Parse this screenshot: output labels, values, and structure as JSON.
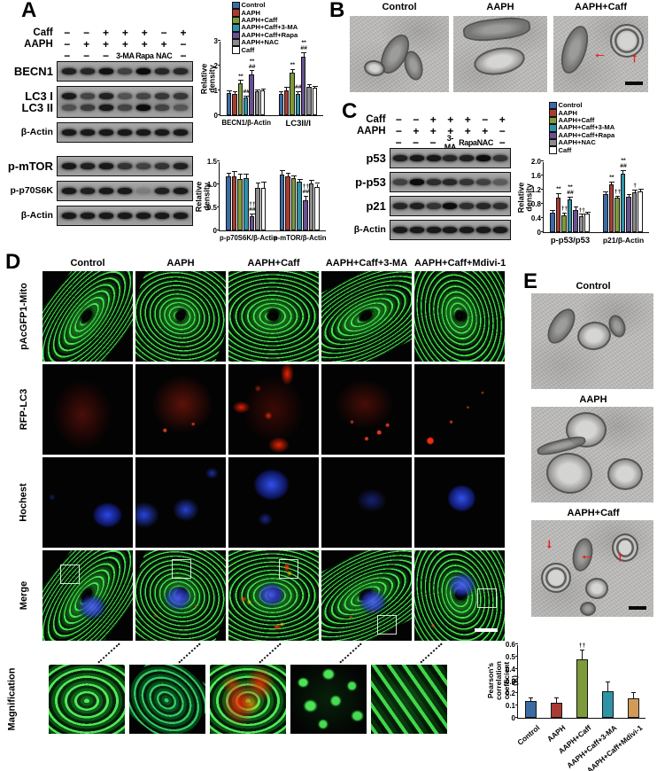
{
  "icons": {
    "red_arrow_left": "←",
    "red_arrow_up": "↑",
    "red_arrow_down": "↓"
  },
  "panelA": {
    "label": "A",
    "blot1": {
      "header": [
        {
          "label": "Caff",
          "symbols": [
            "−",
            "−",
            "+",
            "+",
            "+",
            "−",
            "+"
          ]
        },
        {
          "label": "AAPH",
          "symbols": [
            "−",
            "+",
            "+",
            "+",
            "+",
            "+",
            "−"
          ]
        },
        {
          "label": "",
          "symbols": [
            "−",
            "−",
            "−",
            "3-MA",
            "Rapa",
            "NAC",
            "−"
          ]
        }
      ],
      "groups": [
        {
          "labels": [
            "BECN1"
          ],
          "bands": [
            [
              0.85,
              0.8,
              0.95,
              0.6,
              1,
              0.8,
              0.8
            ]
          ]
        },
        {
          "labels": [
            "LC3 I",
            "LC3 II"
          ],
          "bands": [
            [
              0.9,
              0.6,
              0.85,
              0.5,
              0.6,
              0.7,
              0.7
            ],
            [
              0.5,
              0.65,
              0.9,
              0.6,
              1,
              0.6,
              0.45
            ]
          ]
        },
        {
          "labels": [
            "β-Actin"
          ],
          "bands": [
            [
              0.9,
              0.9,
              0.9,
              0.9,
              0.9,
              0.9,
              0.9
            ]
          ]
        }
      ]
    },
    "blot2": {
      "header": [],
      "groups": [
        {
          "labels": [
            "p-mTOR"
          ],
          "bands": [
            [
              0.9,
              0.85,
              0.9,
              0.7,
              0.6,
              0.7,
              0.85
            ]
          ]
        },
        {
          "labels": [
            "p-p70S6K"
          ],
          "bands": [
            [
              0.9,
              0.85,
              0.9,
              0.9,
              0.15,
              0.85,
              0.9
            ]
          ]
        },
        {
          "labels": [
            "β-Actin"
          ],
          "bands": [
            [
              0.9,
              0.9,
              0.9,
              0.9,
              0.9,
              0.9,
              0.9
            ]
          ]
        }
      ]
    }
  },
  "panelB": {
    "label": "B",
    "titles": [
      "Control",
      "AAPH",
      "AAPH+Caff"
    ]
  },
  "panelC": {
    "label": "C",
    "blot": {
      "header": [
        {
          "label": "Caff",
          "symbols": [
            "−",
            "−",
            "+",
            "+",
            "+",
            "−",
            "+"
          ]
        },
        {
          "label": "AAPH",
          "symbols": [
            "−",
            "+",
            "+",
            "+",
            "+",
            "+",
            "−"
          ]
        },
        {
          "label": "",
          "symbols": [
            "−",
            "−",
            "−",
            "3-MA",
            "Rapa",
            "NAC",
            "−"
          ]
        }
      ],
      "groups": [
        {
          "labels": [
            "p53"
          ],
          "bands": [
            [
              0.85,
              0.9,
              0.9,
              0.8,
              0.85,
              1,
              0.7
            ]
          ]
        },
        {
          "labels": [
            "p-p53"
          ],
          "bands": [
            [
              0.6,
              1,
              0.75,
              0.8,
              0.7,
              0.6,
              0.4
            ]
          ]
        },
        {
          "labels": [
            "p21"
          ],
          "bands": [
            [
              0.8,
              0.85,
              0.7,
              1,
              0.75,
              0.8,
              0.75
            ]
          ]
        },
        {
          "labels": [
            "β-Actin"
          ],
          "bands": [
            [
              0.9,
              0.9,
              0.9,
              0.9,
              0.9,
              0.9,
              0.9
            ]
          ]
        }
      ]
    }
  },
  "panelD": {
    "label": "D",
    "columns": [
      "Control",
      "AAPH",
      "AAPH+Caff",
      "AAPH+Caff+3-MA",
      "AAPH+Caff+Mdivi-1"
    ],
    "rows": [
      "pAcGFP1-Mito",
      "RFP-LC3",
      "Hochest",
      "Merge"
    ],
    "magnification_label": "Magnification"
  },
  "panelE": {
    "label": "E",
    "titles": [
      "Control",
      "AAPH",
      "AAPH+Caff"
    ]
  },
  "chart_data": [
    {
      "id": "becn1-lc3-density",
      "type": "bar",
      "ylabel": "Relative density",
      "ylim": [
        0,
        3
      ],
      "yticks": [
        "0",
        "1",
        "2",
        "3"
      ],
      "categories": [
        "BECN1/β-Actin",
        "LC3II/I"
      ],
      "legend_position": "top",
      "series": [
        {
          "name": "Control",
          "color": "#3b6ba5",
          "values": [
            0.9,
            0.85
          ],
          "errors": [
            0.07,
            0.07
          ]
        },
        {
          "name": "AAPH",
          "color": "#a93c32",
          "values": [
            0.85,
            1.0
          ],
          "errors": [
            0.08,
            0.1
          ]
        },
        {
          "name": "AAPH+Caff",
          "color": "#7d9b3a",
          "values": [
            1.3,
            1.7
          ],
          "errors": [
            0.08,
            0.12
          ]
        },
        {
          "name": "AAPH+Caff+3-MA",
          "color": "#2f93a8",
          "values": [
            0.7,
            0.85
          ],
          "errors": [
            0.05,
            0.07
          ]
        },
        {
          "name": "AAPH+Caff+Rapa",
          "color": "#6a4f92",
          "values": [
            1.65,
            2.35
          ],
          "errors": [
            0.12,
            0.15
          ]
        },
        {
          "name": "AAPH+NAC",
          "color": "#8b8b8d",
          "values": [
            0.95,
            1.15
          ],
          "errors": [
            0.06,
            0.05
          ]
        },
        {
          "name": "Caff",
          "color": "#ffffff",
          "values": [
            1.0,
            1.1
          ],
          "errors": [
            0.05,
            0.05
          ]
        }
      ],
      "annotations": [
        {
          "cat": 0,
          "series": 2,
          "text": "**"
        },
        {
          "cat": 0,
          "series": 3,
          "text": "##"
        },
        {
          "cat": 0,
          "series": 4,
          "text": "**\n##"
        },
        {
          "cat": 1,
          "series": 2,
          "text": "**"
        },
        {
          "cat": 1,
          "series": 3,
          "text": "##"
        },
        {
          "cat": 1,
          "series": 4,
          "text": "**\n##"
        }
      ]
    },
    {
      "id": "p70s6k-mtor-density",
      "type": "bar",
      "ylabel": "Relative density",
      "ylim": [
        0,
        1.5
      ],
      "yticks": [
        "0",
        "0.5",
        "1.0",
        "1.5"
      ],
      "categories": [
        "p-p70S6K/β-Actin",
        "p-mTOR/β-Actin"
      ],
      "series": [
        {
          "name": "Control",
          "color": "#3b6ba5",
          "values": [
            1.18,
            1.22
          ],
          "errors": [
            0.05,
            0.07
          ]
        },
        {
          "name": "AAPH",
          "color": "#a93c32",
          "values": [
            1.18,
            1.18
          ],
          "errors": [
            0.08,
            0.06
          ]
        },
        {
          "name": "AAPH+Caff",
          "color": "#7d9b3a",
          "values": [
            1.12,
            1.13
          ],
          "errors": [
            0.1,
            0.05
          ]
        },
        {
          "name": "AAPH+Caff+3-MA",
          "color": "#2f93a8",
          "values": [
            1.13,
            1.05
          ],
          "errors": [
            0.08,
            0.04
          ]
        },
        {
          "name": "AAPH+Caff+Rapa",
          "color": "#6a4f92",
          "values": [
            0.3,
            0.65
          ],
          "errors": [
            0.05,
            0.08
          ]
        },
        {
          "name": "AAPH+NAC",
          "color": "#8b8b8d",
          "values": [
            0.92,
            1.02
          ],
          "errors": [
            0.1,
            0.06
          ]
        },
        {
          "name": "Caff",
          "color": "#ffffff",
          "values": [
            0.93,
            0.95
          ],
          "errors": [
            0.1,
            0.06
          ]
        }
      ],
      "annotations": [
        {
          "cat": 0,
          "series": 4,
          "text": "††\n##"
        },
        {
          "cat": 1,
          "series": 4,
          "text": "††\n##"
        }
      ]
    },
    {
      "id": "p53-p21-density",
      "type": "bar",
      "ylabel": "Relative density",
      "ylim": [
        0,
        2
      ],
      "yticks": [
        "0",
        "0.4",
        "0.8",
        "1.2",
        "1.6",
        "2.0"
      ],
      "categories": [
        "p-p53/p53",
        "p21/β-Actin"
      ],
      "legend_position": "top",
      "series": [
        {
          "name": "Control",
          "color": "#3b6ba5",
          "values": [
            0.55,
            1.07
          ],
          "errors": [
            0.05,
            0.05
          ]
        },
        {
          "name": "AAPH",
          "color": "#a93c32",
          "values": [
            0.97,
            1.35
          ],
          "errors": [
            0.1,
            0.05
          ]
        },
        {
          "name": "AAPH+Caff",
          "color": "#7d9b3a",
          "values": [
            0.48,
            0.97
          ],
          "errors": [
            0.05,
            0.04
          ]
        },
        {
          "name": "AAPH+Caff+3-MA",
          "color": "#2f93a8",
          "values": [
            0.92,
            1.65
          ],
          "errors": [
            0.06,
            0.08
          ]
        },
        {
          "name": "AAPH+Caff+Rapa",
          "color": "#6a4f92",
          "values": [
            0.62,
            1.0
          ],
          "errors": [
            0.07,
            0.05
          ]
        },
        {
          "name": "AAPH+NAC",
          "color": "#8b8b8d",
          "values": [
            0.44,
            1.12
          ],
          "errors": [
            0.05,
            0.05
          ]
        },
        {
          "name": "Caff",
          "color": "#ffffff",
          "values": [
            0.52,
            1.15
          ],
          "errors": [
            0.04,
            0.04
          ]
        }
      ],
      "annotations": [
        {
          "cat": 0,
          "series": 1,
          "text": "**"
        },
        {
          "cat": 0,
          "series": 2,
          "text": "††"
        },
        {
          "cat": 0,
          "series": 3,
          "text": "**\n##"
        },
        {
          "cat": 0,
          "series": 5,
          "text": "††"
        },
        {
          "cat": 1,
          "series": 1,
          "text": "**"
        },
        {
          "cat": 1,
          "series": 2,
          "text": "††"
        },
        {
          "cat": 1,
          "series": 3,
          "text": "**\n##"
        },
        {
          "cat": 1,
          "series": 5,
          "text": "†"
        }
      ]
    },
    {
      "id": "pearson-correlation",
      "type": "bar",
      "ylabel": "Pearson's correlation\ncoefficient (R)",
      "ylim": [
        0,
        0.6
      ],
      "yticks": [
        "0",
        "0.1",
        "0.2",
        "0.3",
        "0.4",
        "0.5",
        "0.6"
      ],
      "categories": [
        "Control",
        "AAPH",
        "AAPH+Caff",
        "AAPH+Caff+3-MA",
        "AAPH+Caff+Mdivi-1"
      ],
      "values": [
        0.14,
        0.12,
        0.48,
        0.22,
        0.16
      ],
      "errors": [
        0.02,
        0.04,
        0.07,
        0.07,
        0.04
      ],
      "bar_colors": [
        "#3b6ba5",
        "#a93c32",
        "#7d9b3a",
        "#2f93a8",
        "#d29a57"
      ],
      "rotate_xlabels": true,
      "annotations": [
        {
          "cat": 2,
          "text": "††"
        }
      ]
    }
  ]
}
